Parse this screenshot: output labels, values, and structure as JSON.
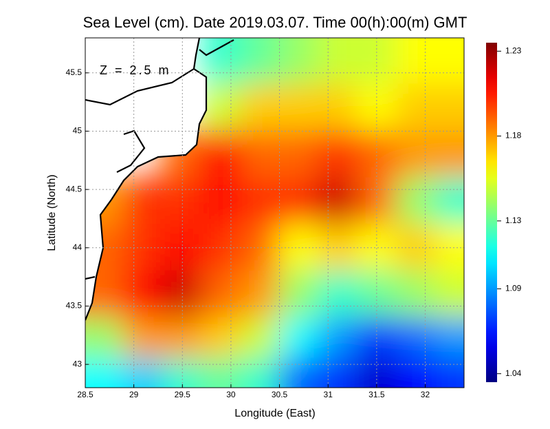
{
  "chart_data": {
    "type": "heatmap",
    "title": "Sea Level (cm). Date 2019.03.07. Time 00(h):00(m) GMT",
    "annotation": "Z = 2.5 m",
    "x_label": "Longitude (East)",
    "y_label": "Latitude (North)",
    "xlim": [
      28.5,
      32.4
    ],
    "ylim": [
      42.8,
      45.8
    ],
    "xticks": [
      28.5,
      29,
      29.5,
      30,
      30.5,
      31,
      31.5,
      32
    ],
    "yticks": [
      43,
      43.5,
      44,
      44.5,
      45,
      45.5
    ],
    "grid": true,
    "colormap": "jet",
    "clim": [
      1.035,
      1.235
    ],
    "cticks": [
      1.04,
      1.09,
      1.13,
      1.18,
      1.23
    ],
    "x": [
      28.7,
      29.1,
      29.5,
      29.9,
      30.3,
      30.7,
      31.1,
      31.5,
      31.9,
      32.3
    ],
    "y": [
      45.6,
      45.2,
      44.8,
      44.4,
      44.0,
      43.6,
      43.2,
      42.9
    ],
    "values": [
      [
        null,
        null,
        null,
        1.12,
        1.13,
        1.14,
        1.15,
        1.15,
        1.16,
        1.16
      ],
      [
        null,
        null,
        null,
        1.15,
        1.17,
        1.17,
        1.17,
        1.16,
        1.17,
        1.17
      ],
      [
        null,
        null,
        1.19,
        1.21,
        1.19,
        1.19,
        1.2,
        1.19,
        1.18,
        1.18
      ],
      [
        1.18,
        1.2,
        1.2,
        1.21,
        1.2,
        1.2,
        1.22,
        1.19,
        1.14,
        1.12
      ],
      [
        1.19,
        1.2,
        1.21,
        1.2,
        1.19,
        1.16,
        1.17,
        1.16,
        1.17,
        1.16
      ],
      [
        1.19,
        1.21,
        1.22,
        1.19,
        1.18,
        1.14,
        1.12,
        1.13,
        1.14,
        1.15
      ],
      [
        1.14,
        1.18,
        1.18,
        1.17,
        1.15,
        1.11,
        1.09,
        1.07,
        1.08,
        1.09
      ],
      [
        1.11,
        1.1,
        1.12,
        1.13,
        1.12,
        1.08,
        1.07,
        1.05,
        1.06,
        1.07
      ]
    ]
  }
}
